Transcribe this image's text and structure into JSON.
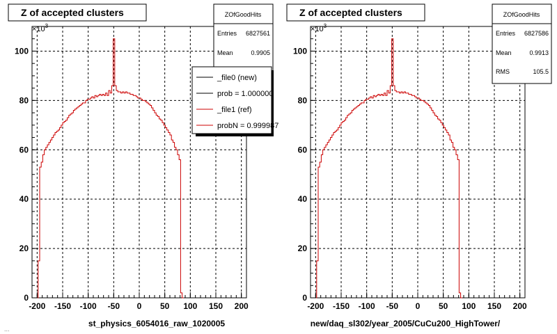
{
  "footer": "...",
  "chart_data": [
    {
      "type": "histogram",
      "title": "Z of accepted clusters",
      "xlabel": "st_physics_6054016_raw_1020005",
      "ylabel": "",
      "y_exponent_label": "×10",
      "y_exponent_power": "3",
      "xlim": [
        -210,
        210
      ],
      "ylim": [
        0,
        110000
      ],
      "grid": true,
      "x_ticks": [
        -200,
        -150,
        -100,
        -50,
        0,
        50,
        100,
        150,
        200
      ],
      "x_tick_labels": [
        "-200",
        "-150",
        "-100",
        "-50",
        "0",
        "50",
        "100",
        "150",
        "200"
      ],
      "y_ticks": [
        0,
        20000,
        40000,
        60000,
        80000,
        100000
      ],
      "y_tick_labels": [
        "0",
        "20",
        "40",
        "60",
        "80",
        "100"
      ],
      "stats": {
        "name": "ZOfGoodHits",
        "rows": [
          {
            "label": "Entries",
            "value": "6827561"
          },
          {
            "label": "Mean",
            "value": "0.9905"
          }
        ]
      },
      "legend": {
        "placement": "top-right",
        "entries": [
          {
            "label": "_file0 (new)",
            "color": "#000000"
          },
          {
            "label": "prob = 1.000000",
            "color": "#000000"
          },
          {
            "label": "_file1 (ref)",
            "color": "#cc0000"
          },
          {
            "label": "probN = 0.999987",
            "color": "#cc0000"
          }
        ]
      },
      "series": [
        {
          "color": "#cc0000",
          "bin_width": 3,
          "bin_edges_start": -201,
          "values": [
            0,
            15000,
            53000,
            55000,
            58000,
            60000,
            61000,
            62000,
            63000,
            64000,
            65000,
            66000,
            67000,
            67500,
            68000,
            69000,
            70000,
            71000,
            71500,
            72000,
            73000,
            74000,
            74500,
            75000,
            76000,
            76500,
            77000,
            77500,
            78000,
            78500,
            79000,
            79000,
            80000,
            80500,
            80500,
            81000,
            81500,
            81000,
            82000,
            81500,
            82000,
            82500,
            82000,
            82500,
            82000,
            83000,
            82000,
            84000,
            83000,
            86000,
            105000,
            86000,
            84000,
            83500,
            83500,
            83000,
            83500,
            83000,
            83500,
            83000,
            83000,
            82500,
            82500,
            82000,
            82000,
            81500,
            81000,
            81000,
            80500,
            80000,
            80000,
            79500,
            79000,
            78500,
            78000,
            77000,
            76000,
            75000,
            74000,
            73500,
            72500,
            72000,
            71000,
            70000,
            69000,
            68000,
            67000,
            66000,
            64000,
            63000,
            61000,
            60000,
            58000,
            56000,
            2000,
            0
          ]
        }
      ]
    },
    {
      "type": "histogram",
      "title": "Z of accepted clusters",
      "xlabel": "new/daq_sl302/year_2005/CuCu200_HighTower/",
      "ylabel": "",
      "y_exponent_label": "×10",
      "y_exponent_power": "3",
      "xlim": [
        -210,
        210
      ],
      "ylim": [
        0,
        110000
      ],
      "grid": true,
      "x_ticks": [
        -200,
        -150,
        -100,
        -50,
        0,
        50,
        100,
        150,
        200
      ],
      "x_tick_labels": [
        "-200",
        "-150",
        "-100",
        "-50",
        "0",
        "50",
        "100",
        "150",
        "200"
      ],
      "y_ticks": [
        0,
        20000,
        40000,
        60000,
        80000,
        100000
      ],
      "y_tick_labels": [
        "0",
        "20",
        "40",
        "60",
        "80",
        "100"
      ],
      "stats": {
        "name": "ZOfGoodHits",
        "rows": [
          {
            "label": "Entries",
            "value": "6827586"
          },
          {
            "label": "Mean",
            "value": "0.9913"
          },
          {
            "label": "RMS",
            "value": "105.5"
          }
        ]
      },
      "series": [
        {
          "color": "#cc0000",
          "bin_width": 3,
          "bin_edges_start": -201,
          "values": [
            0,
            15000,
            53000,
            55000,
            58000,
            60000,
            61000,
            62000,
            63000,
            64000,
            65000,
            66000,
            67000,
            67500,
            68000,
            69000,
            70000,
            71000,
            71500,
            72000,
            73000,
            74000,
            74500,
            75000,
            76000,
            76500,
            77000,
            77500,
            78000,
            78500,
            79000,
            79000,
            80000,
            80500,
            80500,
            81000,
            81500,
            81000,
            82000,
            81500,
            82000,
            82500,
            82000,
            82500,
            82000,
            83000,
            82000,
            84000,
            83000,
            86000,
            105000,
            86000,
            84000,
            83500,
            83500,
            83000,
            83500,
            83000,
            83500,
            83000,
            83000,
            82500,
            82500,
            82000,
            82000,
            81500,
            81000,
            81000,
            80500,
            80000,
            80000,
            79500,
            79000,
            78500,
            78000,
            77000,
            76000,
            75000,
            74000,
            73500,
            72500,
            72000,
            71000,
            70000,
            69000,
            68000,
            67000,
            66000,
            64000,
            63000,
            61000,
            60000,
            58000,
            56000,
            2000,
            0
          ]
        }
      ]
    }
  ]
}
